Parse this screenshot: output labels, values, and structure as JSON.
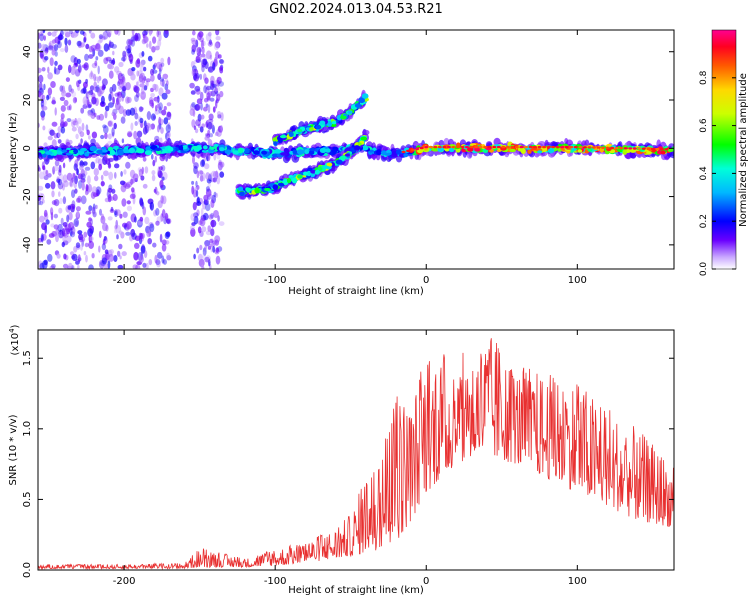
{
  "figure": {
    "title": "GN02.2024.013.04.53.R21"
  },
  "chart_data": [
    {
      "type": "heatmap",
      "xlabel": "Height of straight line (km)",
      "ylabel": "Frequency (Hz)",
      "xlim": [
        -257,
        164
      ],
      "ylim": [
        -50,
        49
      ],
      "xticks": [
        -200,
        -100,
        0,
        100
      ],
      "xtick_labels": [
        "-200",
        "-100",
        "0",
        "100"
      ],
      "yticks": [
        -40,
        -20,
        0,
        20,
        40
      ],
      "ytick_labels": [
        "-40",
        "-20",
        "0",
        "20",
        "40"
      ],
      "colorbar": {
        "label": "Normalized spectral amplitude",
        "range": [
          0.0,
          1.0
        ],
        "ticks": [
          0.0,
          0.2,
          0.4,
          0.6,
          0.8
        ],
        "tick_labels": [
          "0.0",
          "0.2",
          "0.4",
          "0.6",
          "0.8"
        ],
        "colormap": [
          "#ffffff",
          "#6a00ff",
          "#0000ff",
          "#00d8ff",
          "#00ff00",
          "#ffff00",
          "#ff8000",
          "#ff0000",
          "#ff0080"
        ]
      },
      "features": [
        {
          "name": "main-line",
          "x": [
            -257,
            -150,
            -100,
            -60,
            -40,
            -30,
            -15,
            0,
            50,
            100,
            164
          ],
          "y": [
            -2,
            0,
            -2,
            -1,
            0,
            -2,
            -2,
            0,
            0,
            0,
            -1
          ],
          "peak_amplitude": 0.95
        },
        {
          "name": "upper-branch",
          "x": [
            -100,
            -80,
            -60,
            -50,
            -40
          ],
          "y": [
            3,
            8,
            11,
            15,
            21
          ],
          "peak_amplitude": 0.7
        },
        {
          "name": "lower-branch",
          "x": [
            -125,
            -105,
            -90,
            -75,
            -60,
            -50,
            -40
          ],
          "y": [
            -18,
            -17,
            -13,
            -10,
            -6,
            -2,
            5
          ],
          "peak_amplitude": 0.6
        },
        {
          "name": "noise-region-1",
          "x": [
            -257,
            -170
          ],
          "y": [
            -50,
            49
          ],
          "amplitude": 0.15
        },
        {
          "name": "noise-region-2",
          "x": [
            -155,
            -135
          ],
          "y": [
            -50,
            49
          ],
          "amplitude": 0.15
        }
      ]
    },
    {
      "type": "line",
      "xlabel": "Height of straight line (km)",
      "ylabel": "SNR (10 * v/v)",
      "yscale_label": "(x10",
      "yscale_exponent": "4",
      "yscale_suffix": ")",
      "xlim": [
        -257,
        164
      ],
      "ylim": [
        0,
        1.7
      ],
      "xticks": [
        -200,
        -100,
        0,
        100
      ],
      "xtick_labels": [
        "-200",
        "-100",
        "0",
        "100"
      ],
      "yticks": [
        0.0,
        0.5,
        1.0,
        1.5
      ],
      "ytick_labels": [
        "0.0",
        "0.5",
        "1.0",
        "1.5"
      ],
      "line_color": "#e83030",
      "envelope": {
        "x": [
          -257,
          -200,
          -160,
          -150,
          -120,
          -100,
          -80,
          -60,
          -50,
          -40,
          -30,
          -20,
          -10,
          0,
          20,
          40,
          60,
          80,
          100,
          120,
          140,
          164
        ],
        "lower": [
          0.01,
          0.01,
          0.01,
          0.02,
          0.02,
          0.03,
          0.05,
          0.08,
          0.1,
          0.12,
          0.15,
          0.2,
          0.35,
          0.55,
          0.75,
          0.8,
          0.75,
          0.65,
          0.55,
          0.45,
          0.35,
          0.3
        ],
        "upper": [
          0.04,
          0.04,
          0.05,
          0.16,
          0.08,
          0.15,
          0.2,
          0.3,
          0.4,
          0.68,
          0.85,
          1.3,
          1.2,
          1.58,
          1.5,
          1.7,
          1.45,
          1.4,
          1.35,
          1.15,
          1.0,
          0.75
        ]
      }
    }
  ]
}
